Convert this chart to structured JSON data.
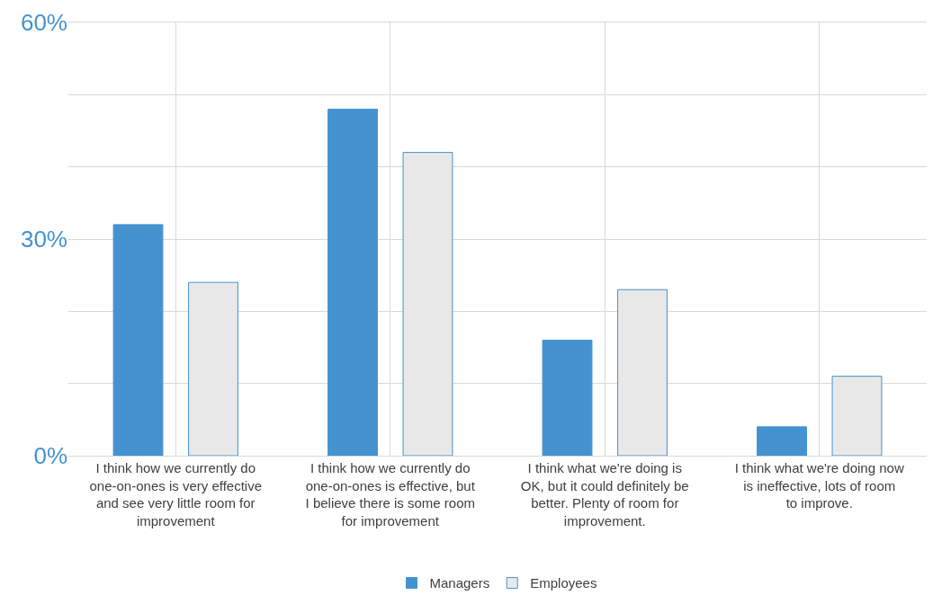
{
  "chart_data": {
    "type": "bar",
    "categories": [
      "I think how we currently do one-on-ones is very effective and see very little room for improvement",
      "I think how we currently do one-on-ones is effective, but I believe there is some room for improvement",
      "I think what we're doing is OK, but it could definitely be better. Plenty of room for improvement.",
      "I think what we're doing now is ineffective, lots of room to improve."
    ],
    "series": [
      {
        "name": "Managers",
        "color": "#4592d0",
        "values": [
          32,
          48,
          16,
          4
        ]
      },
      {
        "name": "Employees",
        "color": "#e8e8e8",
        "values": [
          24,
          42,
          23,
          11
        ]
      }
    ],
    "ylim": [
      0,
      60
    ],
    "yticks": [
      {
        "value": 0,
        "label": "0%"
      },
      {
        "value": 10,
        "label": null
      },
      {
        "value": 20,
        "label": null
      },
      {
        "value": 30,
        "label": "30%"
      },
      {
        "value": 40,
        "label": null
      },
      {
        "value": 50,
        "label": null
      },
      {
        "value": 60,
        "label": "60%"
      }
    ],
    "grid": true,
    "legend": "bottom"
  }
}
